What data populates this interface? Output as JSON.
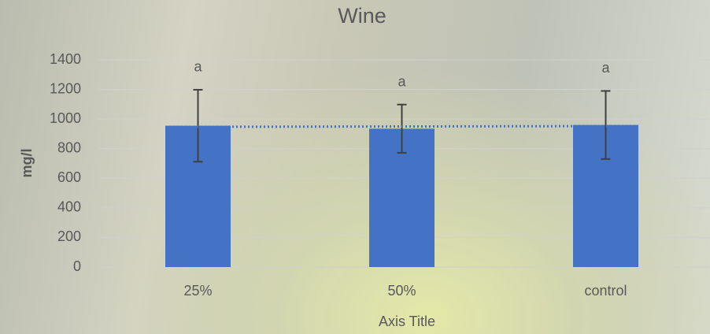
{
  "chart_data": {
    "type": "bar",
    "title": "Wine",
    "x_label": "Axis Title",
    "y_label": "mg/l",
    "categories": [
      "25%",
      "50%",
      "control"
    ],
    "values": [
      955,
      935,
      960
    ],
    "errors": [
      243,
      163,
      230
    ],
    "annotations": [
      "a",
      "a",
      "a"
    ],
    "color": "#4472c4",
    "error_color": "#404040",
    "trendline": "linear",
    "ylim": [
      0,
      1400
    ],
    "yticks": [
      0,
      200,
      400,
      600,
      800,
      1000,
      1200,
      1400
    ],
    "grid": true
  }
}
